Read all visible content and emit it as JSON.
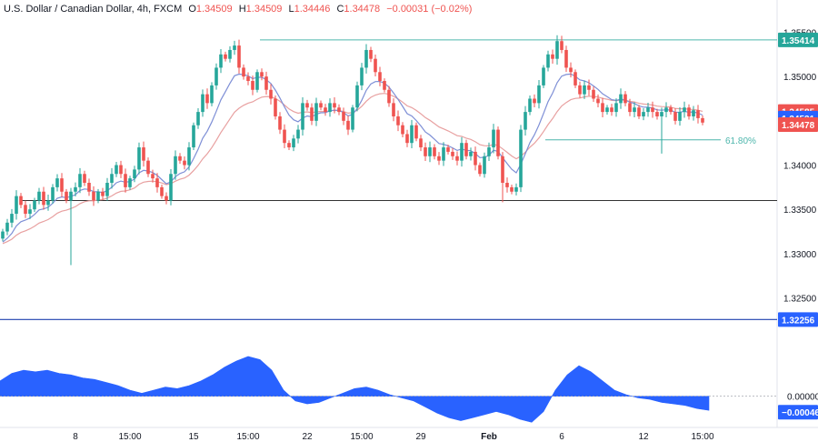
{
  "legend": {
    "symbol": "U.S. Dollar / Canadian Dollar, 4h, FXCM",
    "o_label": "O",
    "o_value": "1.34509",
    "h_label": "H",
    "h_value": "1.34509",
    "l_label": "L",
    "l_value": "1.34446",
    "c_label": "C",
    "c_value": "1.34478",
    "change": "−0.00031 (−0.02%)"
  },
  "colors": {
    "up": "#26a69a",
    "down": "#ef5350",
    "ema_fast": "#7e8fd6",
    "ema_slow": "#e8a0a0",
    "level": "#4db6ac",
    "support": "#333333",
    "blue_line": "#1e40af",
    "hist": "#2962ff",
    "tag_blue": "#2962ff",
    "tag_red": "#ef5350",
    "tag_teal": "#26a69a"
  },
  "chart_data": [
    {
      "type": "candlestick",
      "title": "U.S. Dollar / Canadian Dollar, 4h, FXCM",
      "ylim": [
        1.319,
        1.357
      ],
      "y_ticks": [
        "1.32500",
        "1.33000",
        "1.33500",
        "1.34000",
        "1.34500",
        "1.35000",
        "1.35500"
      ],
      "x_ticks": [
        {
          "label": "8",
          "bar": 16
        },
        {
          "label": "15:00",
          "bar": 28
        },
        {
          "label": "15",
          "bar": 42
        },
        {
          "label": "15:00",
          "bar": 54
        },
        {
          "label": "22",
          "bar": 67
        },
        {
          "label": "15:00",
          "bar": 79
        },
        {
          "label": "29",
          "bar": 92
        },
        {
          "label": "Feb",
          "bar": 107
        },
        {
          "label": "6",
          "bar": 123
        },
        {
          "label": "12",
          "bar": 141
        },
        {
          "label": "15:00",
          "bar": 154
        }
      ],
      "closes": [
        1.3325,
        1.3335,
        1.3345,
        1.3365,
        1.3355,
        1.3345,
        1.335,
        1.336,
        1.337,
        1.3355,
        1.336,
        1.3375,
        1.3385,
        1.337,
        1.336,
        1.337,
        1.3375,
        1.339,
        1.338,
        1.337,
        1.336,
        1.337,
        1.3365,
        1.338,
        1.339,
        1.34,
        1.339,
        1.3375,
        1.3385,
        1.3395,
        1.342,
        1.3405,
        1.339,
        1.3385,
        1.3375,
        1.3365,
        1.336,
        1.339,
        1.341,
        1.3405,
        1.34,
        1.342,
        1.3445,
        1.346,
        1.348,
        1.347,
        1.349,
        1.351,
        1.3525,
        1.352,
        1.353,
        1.3535,
        1.351,
        1.35,
        1.3495,
        1.3485,
        1.3505,
        1.35,
        1.3485,
        1.3475,
        1.3455,
        1.344,
        1.3425,
        1.342,
        1.343,
        1.344,
        1.347,
        1.3465,
        1.345,
        1.347,
        1.3465,
        1.346,
        1.347,
        1.3465,
        1.346,
        1.345,
        1.344,
        1.3465,
        1.349,
        1.351,
        1.353,
        1.352,
        1.3505,
        1.3495,
        1.3485,
        1.347,
        1.3455,
        1.3445,
        1.3435,
        1.3425,
        1.3445,
        1.343,
        1.342,
        1.341,
        1.342,
        1.341,
        1.3405,
        1.342,
        1.3415,
        1.341,
        1.3405,
        1.3425,
        1.341,
        1.3415,
        1.34,
        1.339,
        1.341,
        1.342,
        1.344,
        1.341,
        1.338,
        1.3375,
        1.337,
        1.3375,
        1.344,
        1.346,
        1.3475,
        1.347,
        1.349,
        1.351,
        1.3525,
        1.352,
        1.354,
        1.353,
        1.351,
        1.3505,
        1.349,
        1.348,
        1.349,
        1.3485,
        1.3475,
        1.347,
        1.346,
        1.3465,
        1.346,
        1.347,
        1.348,
        1.347,
        1.346,
        1.3465,
        1.3455,
        1.346,
        1.3465,
        1.346,
        1.3455,
        1.346,
        1.3465,
        1.346,
        1.345,
        1.346,
        1.3465,
        1.3455,
        1.3462,
        1.3453,
        1.3448
      ],
      "levels": [
        {
          "price": 1.35414,
          "label": "1.35414"
        },
        {
          "price": 1.34285,
          "label": "61.80%"
        },
        {
          "price": 1.336,
          "label": ""
        },
        {
          "price": 1.32256,
          "label": "1.32256"
        }
      ],
      "price_tags": [
        {
          "label": "1.35414",
          "kind": "teal"
        },
        {
          "label": "1.34585",
          "kind": "red"
        },
        {
          "label": "1.34531",
          "kind": "blue"
        },
        {
          "label": "1.34478",
          "kind": "red"
        },
        {
          "label": "1.32256",
          "kind": "blue"
        }
      ]
    },
    {
      "type": "area",
      "ylim": [
        -0.0009,
        0.0013
      ],
      "y_ticks": [
        "0.00000"
      ],
      "value_tag": "−0.00046",
      "values": [
        0.0005,
        0.00075,
        0.00085,
        0.0008,
        0.00085,
        0.00075,
        0.0007,
        0.0006,
        0.00055,
        0.00045,
        0.00035,
        0.0002,
        0.0001,
        0.0002,
        0.0003,
        0.00025,
        0.00035,
        0.0005,
        0.0007,
        0.00095,
        0.00115,
        0.0013,
        0.0012,
        0.00085,
        0.0002,
        -0.00015,
        -0.00025,
        -0.0002,
        -5e-05,
        0.0001,
        0.00025,
        0.0003,
        0.0002,
        5e-05,
        -5e-05,
        -0.00015,
        -0.00035,
        -0.00055,
        -0.0007,
        -0.0008,
        -0.0007,
        -0.0006,
        -0.0005,
        -0.0006,
        -0.00075,
        -0.00085,
        -0.0005,
        0.0002,
        0.0007,
        0.001,
        0.0008,
        0.0005,
        0.0002,
        5e-05,
        -5e-05,
        -0.0001,
        -0.0002,
        -0.00025,
        -0.0003,
        -0.0004,
        -0.00046
      ],
      "bar_step": 2.6
    }
  ]
}
